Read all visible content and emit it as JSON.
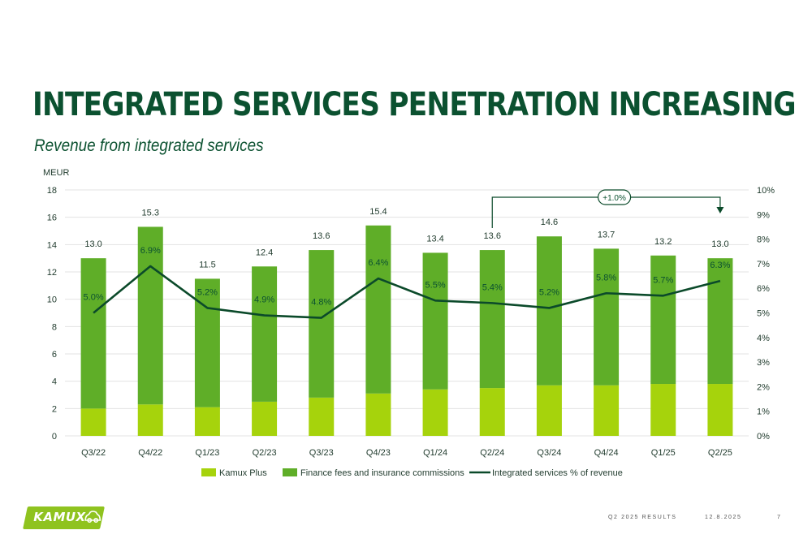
{
  "header": {
    "title": "INTEGRATED SERVICES PENETRATION INCREASING",
    "subtitle": "Revenue from integrated services"
  },
  "colors": {
    "title": "#0b5130",
    "kamux_plus": "#a6d30c",
    "finance": "#5fae28",
    "line": "#0b4a2a",
    "grid": "#e3e3e3",
    "logo": "#8fc31f"
  },
  "chart_data": {
    "type": "bar",
    "stacked": true,
    "categories": [
      "Q3/22",
      "Q4/22",
      "Q1/23",
      "Q2/23",
      "Q3/23",
      "Q4/23",
      "Q1/24",
      "Q2/24",
      "Q3/24",
      "Q4/24",
      "Q1/25",
      "Q2/25"
    ],
    "series": [
      {
        "name": "Kamux Plus",
        "values": [
          2.0,
          2.3,
          2.1,
          2.5,
          2.8,
          3.1,
          3.4,
          3.5,
          3.7,
          3.7,
          3.8,
          3.8
        ]
      },
      {
        "name": "Finance fees and insurance commissions",
        "values": [
          11.0,
          13.0,
          9.4,
          9.9,
          10.8,
          12.3,
          10.0,
          10.1,
          10.9,
          10.0,
          9.4,
          9.2
        ]
      }
    ],
    "totals": [
      "13.0",
      "15.3",
      "11.5",
      "12.4",
      "13.6",
      "15.4",
      "13.4",
      "13.6",
      "14.6",
      "13.7",
      "13.2",
      "13.0"
    ],
    "line_series": {
      "name": "Integrated services % of revenue",
      "values": [
        5.0,
        6.9,
        5.2,
        4.9,
        4.8,
        6.4,
        5.5,
        5.4,
        5.2,
        5.8,
        5.7,
        6.3
      ],
      "labels": [
        "5.0%",
        "6.9%",
        "5.2%",
        "4.9%",
        "4.8%",
        "6.4%",
        "5.5%",
        "5.4%",
        "5.2%",
        "5.8%",
        "5.7%",
        "6.3%"
      ]
    },
    "ylabel": "MEUR",
    "ylim": [
      0,
      18
    ],
    "yticks": [
      "0",
      "2",
      "4",
      "6",
      "8",
      "10",
      "12",
      "14",
      "16",
      "18"
    ],
    "y2lim": [
      0,
      10
    ],
    "y2ticks": [
      "0%",
      "1%",
      "2%",
      "3%",
      "4%",
      "5%",
      "6%",
      "7%",
      "8%",
      "9%",
      "10%"
    ],
    "grid": true,
    "legend": "bottom",
    "annotation": {
      "label": "+1.0%",
      "from": "Q2/24",
      "to": "Q2/25"
    }
  },
  "footer": {
    "logo_text": "KAMUX",
    "report": "Q2 2025 RESULTS",
    "date": "12.8.2025",
    "page": "7"
  }
}
